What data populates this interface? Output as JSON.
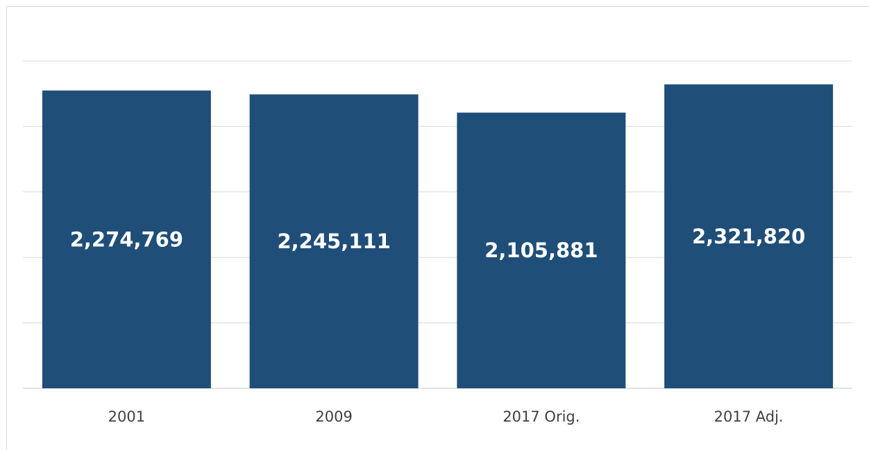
{
  "chart_data": {
    "type": "bar",
    "title": "",
    "categories": [
      "2001",
      "2009",
      "2017 Orig.",
      "2017 Adj."
    ],
    "values": [
      2274769,
      2245111,
      2105881,
      2321820
    ],
    "data_labels": [
      "2,274,769",
      "2,245,111",
      "2,105,881",
      "2,321,820"
    ],
    "xlabel": "",
    "ylabel": "",
    "ylim": [
      0,
      2500000
    ],
    "grid": true,
    "legend": "none",
    "bar_color": "#1f4e79",
    "gridline_color": "#d9d9d9",
    "label_color": "#ffffff",
    "category_color": "#404040"
  }
}
